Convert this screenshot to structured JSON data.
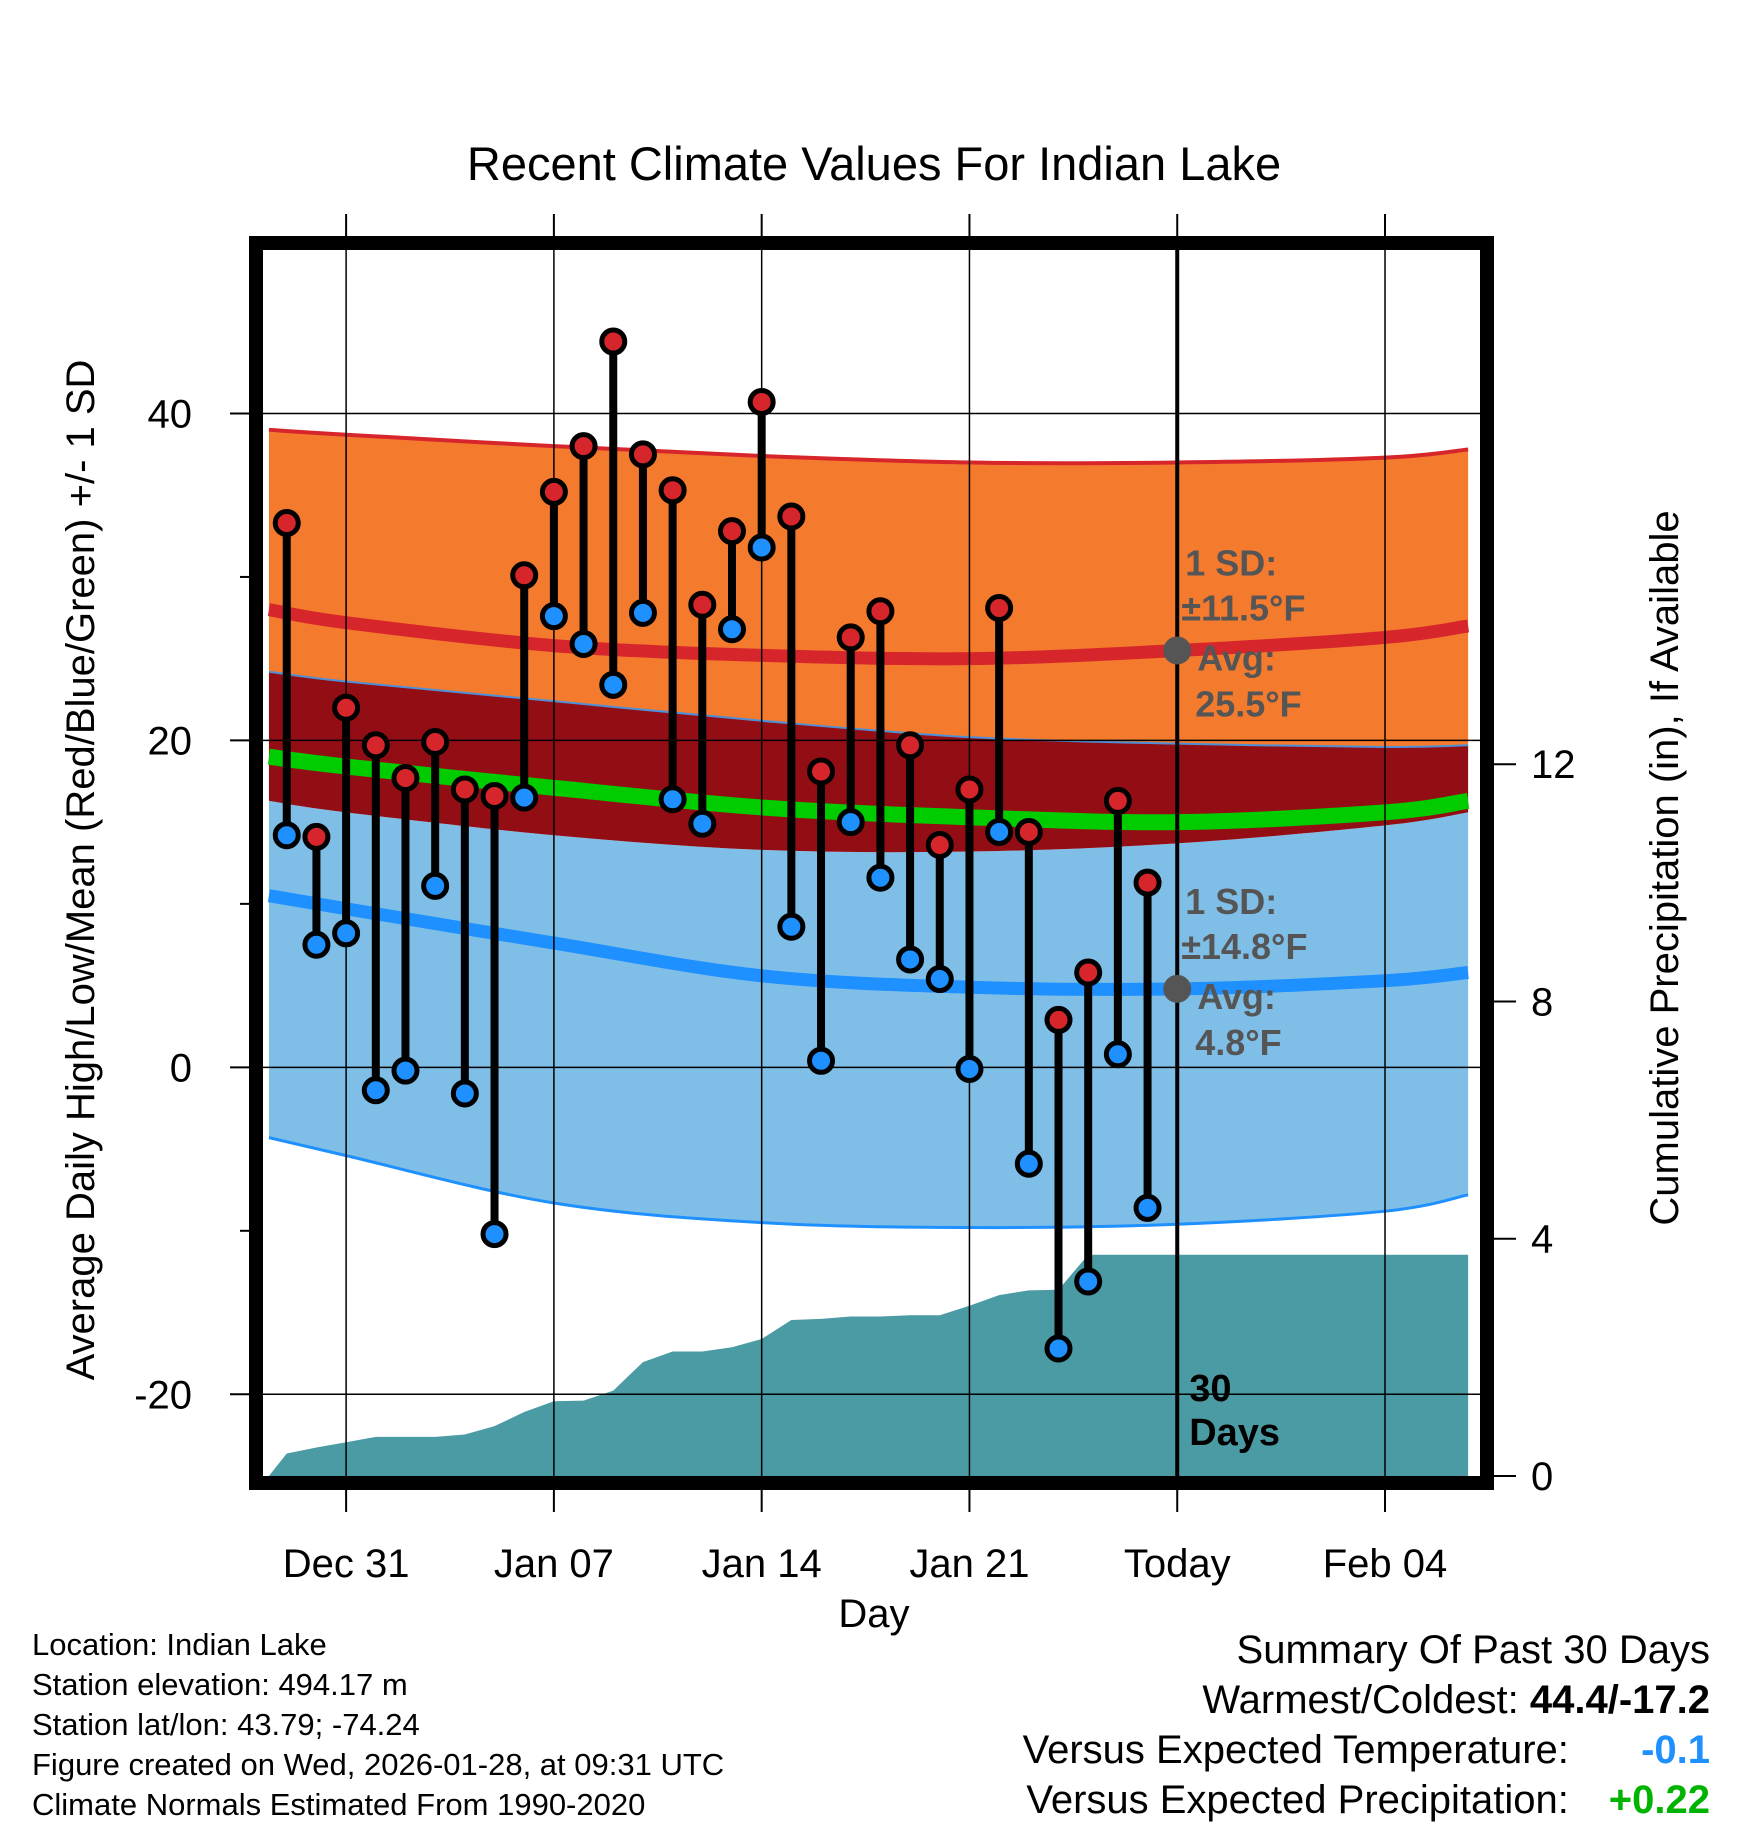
{
  "chart_data": {
    "type": "line",
    "title": "Recent Climate Values For Indian Lake",
    "xlabel": "Day",
    "ylabel": "Average Daily High/Low/Mean (Red/Blue/Green) +/- 1 SD",
    "y2label": "Cumulative Precipitation (in), If Available",
    "ylim": [
      -25,
      50
    ],
    "y2lim": [
      0,
      20.67
    ],
    "xlim": [
      -2.8,
      38.2
    ],
    "y_ticks": [
      -20,
      0,
      20,
      40
    ],
    "y_minor_ticks": [
      -10,
      10,
      30
    ],
    "y2_ticks": [
      0,
      4,
      8,
      12
    ],
    "x_ticks": [
      {
        "x": 0,
        "label": "Dec 31"
      },
      {
        "x": 7,
        "label": "Jan 07"
      },
      {
        "x": 14,
        "label": "Jan 14"
      },
      {
        "x": 21,
        "label": "Jan 21"
      },
      {
        "x": 28,
        "label": "Today"
      },
      {
        "x": 35,
        "label": "Feb 04"
      }
    ],
    "today_x": 28,
    "today_label": "30\nDays",
    "normals": {
      "x": [
        -2.6,
        0,
        7,
        14,
        21,
        28,
        35,
        37.8
      ],
      "high_mean": [
        28.0,
        27.2,
        25.8,
        25.2,
        25.0,
        25.5,
        26.3,
        27.0
      ],
      "high_upper": [
        39.0,
        38.7,
        38.0,
        37.4,
        37.0,
        37.0,
        37.3,
        37.8
      ],
      "high_lower": [
        24.2,
        23.6,
        22.4,
        21.2,
        20.2,
        19.8,
        19.6,
        19.7
      ],
      "mean_mean": [
        19.0,
        18.4,
        17.1,
        15.9,
        15.3,
        15.0,
        15.6,
        16.3
      ],
      "low_upper": [
        16.3,
        15.6,
        14.2,
        13.3,
        13.2,
        13.7,
        14.8,
        15.6
      ],
      "low_mean": [
        10.5,
        9.7,
        7.6,
        5.6,
        4.9,
        4.8,
        5.3,
        5.8
      ],
      "low_lower": [
        -4.3,
        -5.4,
        -8.3,
        -9.5,
        -9.8,
        -9.6,
        -8.8,
        -7.8
      ]
    },
    "annotations": {
      "high": {
        "sd": "1 SD:",
        "sd_value": "±11.5°F",
        "avg": "Avg:",
        "avg_value": "25.5°F",
        "x": 28,
        "y": 25.5
      },
      "low": {
        "sd": "1 SD:",
        "sd_value": "±14.8°F",
        "avg": "Avg:",
        "avg_value": "4.8°F",
        "x": 28,
        "y": 4.8
      }
    },
    "series": [
      {
        "name": "Daily High",
        "x": [
          -2,
          -1,
          0,
          1,
          2,
          3,
          4,
          5,
          6,
          7,
          8,
          9,
          10,
          11,
          12,
          13,
          14,
          15,
          16,
          17,
          18,
          19,
          20,
          21,
          22,
          23,
          24,
          25,
          26,
          27
        ],
        "values": [
          33.3,
          14.1,
          22.0,
          19.7,
          17.7,
          19.9,
          17.0,
          16.6,
          30.1,
          35.2,
          38.0,
          44.4,
          37.5,
          35.3,
          28.3,
          32.8,
          40.7,
          33.7,
          18.1,
          26.3,
          27.9,
          19.7,
          13.6,
          17.0,
          28.1,
          14.4,
          2.9,
          5.8,
          16.3,
          11.3
        ]
      },
      {
        "name": "Daily Low",
        "x": [
          -2,
          -1,
          0,
          1,
          2,
          3,
          4,
          5,
          6,
          7,
          8,
          9,
          10,
          11,
          12,
          13,
          14,
          15,
          16,
          17,
          18,
          19,
          20,
          21,
          22,
          23,
          24,
          25,
          26,
          27
        ],
        "values": [
          14.2,
          7.5,
          8.2,
          -1.4,
          -0.2,
          11.1,
          -1.6,
          -10.2,
          16.5,
          27.6,
          25.9,
          23.4,
          27.8,
          16.4,
          14.9,
          26.8,
          31.8,
          8.6,
          0.4,
          15.0,
          11.6,
          6.6,
          5.4,
          -0.1,
          14.4,
          -5.9,
          -17.2,
          -13.1,
          0.8,
          -8.6
        ]
      },
      {
        "name": "Cumulative Precipitation (in)",
        "x": [
          -2.6,
          -2,
          -1,
          0,
          1,
          2,
          3,
          4,
          5,
          6,
          7,
          8,
          9,
          10,
          11,
          12,
          13,
          14,
          15,
          16,
          17,
          18,
          19,
          20,
          21,
          22,
          23,
          24,
          25,
          26,
          27,
          28,
          35,
          37.8
        ],
        "values": [
          0,
          0.38,
          0.48,
          0.57,
          0.66,
          0.66,
          0.66,
          0.7,
          0.84,
          1.08,
          1.26,
          1.27,
          1.44,
          1.92,
          2.1,
          2.1,
          2.17,
          2.31,
          2.63,
          2.65,
          2.69,
          2.69,
          2.71,
          2.71,
          2.87,
          3.05,
          3.13,
          3.14,
          3.73,
          3.73,
          3.73,
          3.73,
          3.73,
          3.73
        ]
      }
    ],
    "colors": {
      "high_band": "#f47b2e",
      "high_line": "#d7262b",
      "overlap_band": "#930e14",
      "low_band": "#7fbfe7",
      "low_line": "#1e90ff",
      "mean_line": "#00cc00",
      "precip": "#4a9ba4",
      "high_dot": "#d7262b",
      "low_dot": "#1e90ff",
      "annotation": "#555555"
    }
  },
  "info": {
    "location": "Location: Indian Lake",
    "elevation": "Station elevation: 494.17 m",
    "latlon": "Station lat/lon: 43.79; -74.24",
    "created": "Figure created on Wed, 2026-01-28, at 09:31 UTC",
    "normals": "Climate Normals Estimated From 1990-2020"
  },
  "summary": {
    "heading": "Summary Of Past 30 Days",
    "warmest_label": "Warmest/Coldest:",
    "warmest_value": "44.4/-17.2",
    "temp_label": "Versus Expected Temperature:",
    "temp_value": "-0.1",
    "precip_label": "Versus Expected Precipitation:",
    "precip_value": "+0.22"
  }
}
